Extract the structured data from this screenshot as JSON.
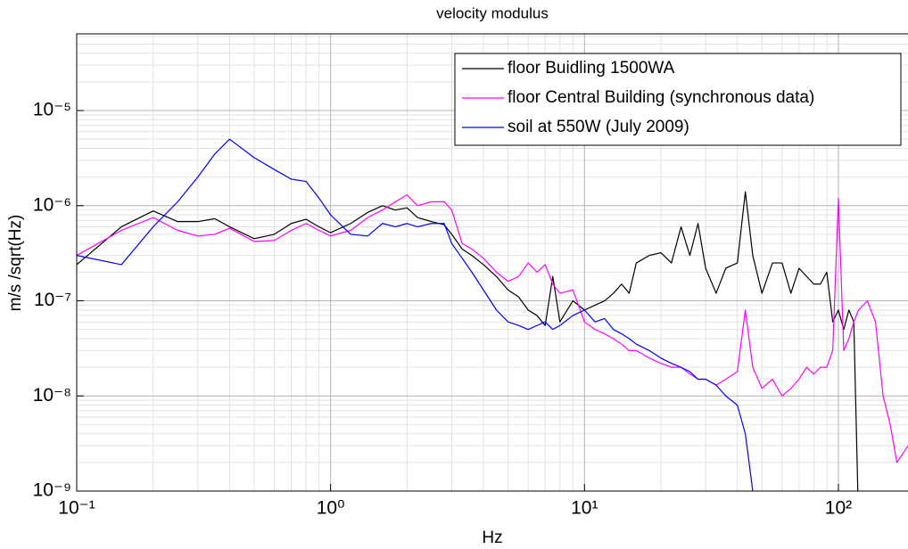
{
  "chart_data": {
    "type": "line",
    "title": "velocity modulus",
    "xlabel": "Hz",
    "ylabel": "m/s /sqrt(Hz)",
    "log_x": true,
    "log_y": true,
    "grid": true,
    "minor_grid": true,
    "legend_position": "upper right",
    "xlim": [
      0.1,
      188
    ],
    "ylim": [
      1e-09,
      6.4e-05
    ],
    "xticks": [
      {
        "value": 0.1,
        "label": "10⁻¹"
      },
      {
        "value": 1,
        "label": "10⁰"
      },
      {
        "value": 10,
        "label": "10¹"
      },
      {
        "value": 100,
        "label": "10²"
      }
    ],
    "yticks": [
      {
        "value": 1e-09,
        "label": "10⁻⁹"
      },
      {
        "value": 1e-08,
        "label": "10⁻⁸"
      },
      {
        "value": 1e-07,
        "label": "10⁻⁷"
      },
      {
        "value": 1e-06,
        "label": "10⁻⁶"
      },
      {
        "value": 1e-05,
        "label": "10⁻⁵"
      }
    ],
    "x": [
      0.1,
      0.15,
      0.2,
      0.25,
      0.3,
      0.35,
      0.4,
      0.5,
      0.6,
      0.7,
      0.8,
      0.9,
      1.0,
      1.2,
      1.4,
      1.6,
      1.8,
      2.0,
      2.2,
      2.5,
      2.8,
      3.0,
      3.3,
      3.6,
      4.0,
      4.5,
      5,
      5.5,
      6,
      6.5,
      7,
      7.5,
      8,
      9,
      10,
      11,
      12,
      13,
      14,
      15,
      16,
      18,
      20,
      22,
      24,
      26,
      28,
      30,
      33,
      36,
      40,
      43,
      46,
      50,
      55,
      60,
      65,
      70,
      75,
      80,
      85,
      90,
      95,
      100,
      105,
      110,
      115,
      120,
      130,
      140,
      150,
      160,
      170,
      180,
      188
    ],
    "series": [
      {
        "name": "floor Buidling 1500WA",
        "color": "#000000",
        "values": [
          2.4e-07,
          6e-07,
          8.8e-07,
          6.8e-07,
          6.8e-07,
          7.3e-07,
          6e-07,
          4.5e-07,
          5e-07,
          6.5e-07,
          7.2e-07,
          6e-07,
          5.2e-07,
          6.5e-07,
          8.5e-07,
          1e-06,
          9e-07,
          9.5e-07,
          7.5e-07,
          6.8e-07,
          6.3e-07,
          5e-07,
          3.5e-07,
          3e-07,
          2.4e-07,
          1.8e-07,
          1.3e-07,
          1.1e-07,
          8e-08,
          7e-08,
          5.5e-08,
          1.8e-07,
          6e-08,
          1e-07,
          8e-08,
          9e-08,
          1e-07,
          1.2e-07,
          1.5e-07,
          1.2e-07,
          2.5e-07,
          3e-07,
          3.2e-07,
          2.5e-07,
          6e-07,
          3e-07,
          6.5e-07,
          2.2e-07,
          1.2e-07,
          2.2e-07,
          2.5e-07,
          1.4e-06,
          3e-07,
          1.2e-07,
          2.5e-07,
          2.5e-07,
          1.2e-07,
          2.2e-07,
          1.8e-07,
          1.5e-07,
          1.5e-07,
          2e-07,
          6e-08,
          8e-08,
          5e-08,
          8e-08,
          6e-08,
          5e-10,
          null,
          null,
          null,
          null,
          null,
          null,
          null
        ]
      },
      {
        "name": "floor Central Building (synchronous data)",
        "color": "#ff00ff",
        "values": [
          3e-07,
          5.5e-07,
          7.5e-07,
          5.5e-07,
          4.8e-07,
          5e-07,
          5.8e-07,
          4.2e-07,
          4.3e-07,
          5.5e-07,
          6.5e-07,
          5.5e-07,
          4.8e-07,
          5.5e-07,
          7.5e-07,
          9e-07,
          1.1e-06,
          1.3e-06,
          1e-06,
          1.1e-06,
          1.1e-06,
          9e-07,
          4e-07,
          3.5e-07,
          2.8e-07,
          2e-07,
          1.6e-07,
          1.8e-07,
          2.5e-07,
          2e-07,
          2.4e-07,
          1.5e-07,
          1.2e-07,
          1.3e-07,
          6e-08,
          5e-08,
          4.5e-08,
          4e-08,
          3.5e-08,
          3e-08,
          3e-08,
          2.5e-08,
          2.2e-08,
          2e-08,
          2e-08,
          1.7e-08,
          1.5e-08,
          1.5e-08,
          1.3e-08,
          1.5e-08,
          1.8e-08,
          8e-08,
          2e-08,
          1.2e-08,
          1.5e-08,
          1e-08,
          1.2e-08,
          1.5e-08,
          2e-08,
          1.7e-08,
          2e-08,
          2e-08,
          3e-08,
          1.2e-06,
          3e-08,
          4e-08,
          6e-08,
          8e-08,
          1e-07,
          6e-08,
          1e-08,
          5e-09,
          2e-09,
          2.5e-09,
          3e-09
        ]
      },
      {
        "name": "soil at 550W (July 2009)",
        "color": "#0000ff",
        "values": [
          3e-07,
          2.4e-07,
          6e-07,
          1.1e-06,
          2e-06,
          3.5e-06,
          5e-06,
          3.2e-06,
          2.4e-06,
          1.9e-06,
          1.8e-06,
          1.2e-06,
          8e-07,
          5e-07,
          4.8e-07,
          6.5e-07,
          6e-07,
          6.5e-07,
          6e-07,
          6.5e-07,
          6.5e-07,
          4e-07,
          2.8e-07,
          2e-07,
          1.3e-07,
          8e-08,
          6e-08,
          5.5e-08,
          5e-08,
          5.5e-08,
          6e-08,
          5e-08,
          5.5e-08,
          7e-08,
          8e-08,
          6e-08,
          6.5e-08,
          5e-08,
          4.5e-08,
          4e-08,
          3.5e-08,
          3e-08,
          2.5e-08,
          2.2e-08,
          2e-08,
          1.8e-08,
          1.5e-08,
          1.5e-08,
          1.3e-08,
          1e-08,
          8e-09,
          4e-09,
          1e-09,
          null,
          null,
          null,
          null,
          null,
          null,
          null,
          null,
          null,
          null,
          null,
          null,
          null,
          null,
          null,
          null,
          null,
          null,
          null,
          null,
          null,
          null
        ]
      }
    ]
  }
}
